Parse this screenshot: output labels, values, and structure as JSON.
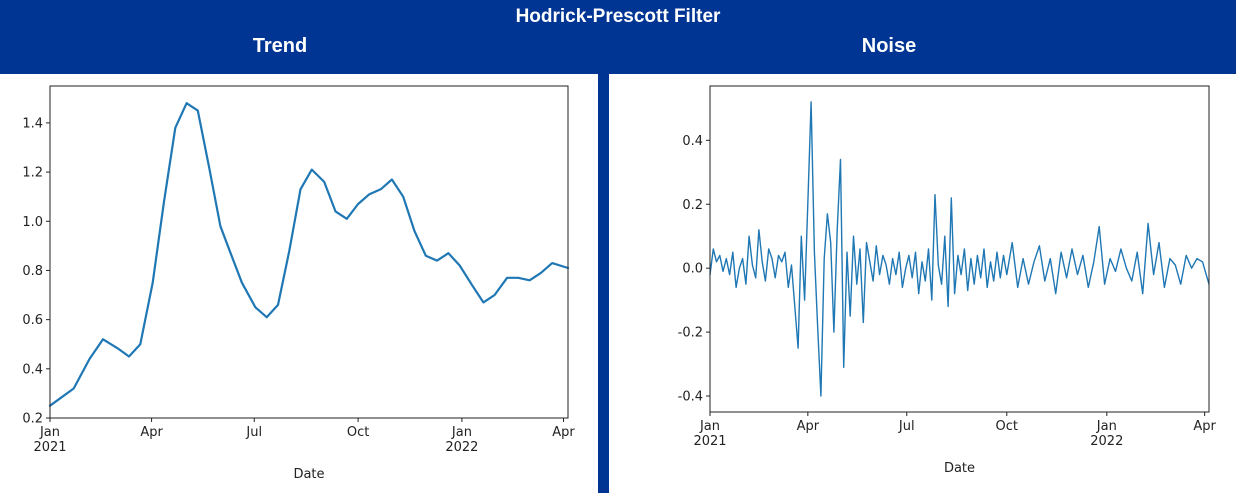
{
  "header": {
    "title": "Hodrick-Prescott Filter",
    "left_title": "Trend",
    "right_title": "Noise"
  },
  "colors": {
    "background": "#003594",
    "line": "#1f77b4",
    "panel": "#ffffff"
  },
  "chart_data": [
    {
      "type": "line",
      "title": "Trend",
      "xlabel": "Date",
      "ylabel": "",
      "xlim": [
        "2021-01-01",
        "2022-04-05"
      ],
      "ylim": [
        0.2,
        1.55
      ],
      "yticks": [
        0.2,
        0.4,
        0.6,
        0.8,
        1.0,
        1.2,
        1.4
      ],
      "xticks": [
        {
          "date": "2021-01-01",
          "label": "Jan",
          "sub": "2021"
        },
        {
          "date": "2021-04-01",
          "label": "Apr",
          "sub": ""
        },
        {
          "date": "2021-07-01",
          "label": "Jul",
          "sub": ""
        },
        {
          "date": "2021-10-01",
          "label": "Oct",
          "sub": ""
        },
        {
          "date": "2022-01-01",
          "label": "Jan",
          "sub": "2022"
        },
        {
          "date": "2022-04-01",
          "label": "Apr",
          "sub": ""
        }
      ],
      "series": [
        {
          "x": [
            "2021-01-01",
            "2021-01-10",
            "2021-01-22",
            "2021-02-05",
            "2021-02-17",
            "2021-03-03",
            "2021-03-12",
            "2021-03-22",
            "2021-04-02",
            "2021-04-12",
            "2021-04-22",
            "2021-05-02",
            "2021-05-12",
            "2021-05-22",
            "2021-06-01",
            "2021-06-10",
            "2021-06-20",
            "2021-07-02",
            "2021-07-12",
            "2021-07-22",
            "2021-08-01",
            "2021-08-11",
            "2021-08-21",
            "2021-09-01",
            "2021-09-11",
            "2021-09-21",
            "2021-10-01",
            "2021-10-11",
            "2021-10-21",
            "2021-10-31",
            "2021-11-10",
            "2021-11-20",
            "2021-11-30",
            "2021-12-10",
            "2021-12-20",
            "2021-12-30",
            "2022-01-10",
            "2022-01-20",
            "2022-01-30",
            "2022-02-10",
            "2022-02-20",
            "2022-03-02",
            "2022-03-12",
            "2022-03-22",
            "2022-04-05"
          ],
          "values": [
            0.25,
            0.28,
            0.32,
            0.44,
            0.52,
            0.48,
            0.45,
            0.5,
            0.75,
            1.08,
            1.38,
            1.48,
            1.45,
            1.22,
            0.98,
            0.87,
            0.75,
            0.65,
            0.61,
            0.66,
            0.88,
            1.13,
            1.21,
            1.16,
            1.04,
            1.01,
            1.07,
            1.11,
            1.13,
            1.17,
            1.1,
            0.96,
            0.86,
            0.84,
            0.87,
            0.82,
            0.74,
            0.67,
            0.7,
            0.77,
            0.77,
            0.76,
            0.79,
            0.83,
            0.81
          ]
        }
      ]
    },
    {
      "type": "line",
      "title": "Noise",
      "xlabel": "Date",
      "ylabel": "",
      "xlim": [
        "2021-01-01",
        "2022-04-05"
      ],
      "ylim": [
        -0.45,
        0.57
      ],
      "yticks": [
        -0.4,
        -0.2,
        0.0,
        0.2,
        0.4
      ],
      "xticks": [
        {
          "date": "2021-01-01",
          "label": "Jan",
          "sub": "2021"
        },
        {
          "date": "2021-04-01",
          "label": "Apr",
          "sub": ""
        },
        {
          "date": "2021-07-01",
          "label": "Jul",
          "sub": ""
        },
        {
          "date": "2021-10-01",
          "label": "Oct",
          "sub": ""
        },
        {
          "date": "2022-01-01",
          "label": "Jan",
          "sub": "2022"
        },
        {
          "date": "2022-04-01",
          "label": "Apr",
          "sub": ""
        }
      ],
      "series": [
        {
          "x": [
            "2021-01-01",
            "2021-01-04",
            "2021-01-07",
            "2021-01-10",
            "2021-01-13",
            "2021-01-16",
            "2021-01-19",
            "2021-01-22",
            "2021-01-25",
            "2021-01-28",
            "2021-01-31",
            "2021-02-03",
            "2021-02-06",
            "2021-02-09",
            "2021-02-12",
            "2021-02-15",
            "2021-02-18",
            "2021-02-21",
            "2021-02-24",
            "2021-02-27",
            "2021-03-02",
            "2021-03-05",
            "2021-03-08",
            "2021-03-11",
            "2021-03-14",
            "2021-03-17",
            "2021-03-20",
            "2021-03-23",
            "2021-03-26",
            "2021-03-29",
            "2021-04-01",
            "2021-04-04",
            "2021-04-07",
            "2021-04-10",
            "2021-04-13",
            "2021-04-16",
            "2021-04-19",
            "2021-04-22",
            "2021-04-25",
            "2021-04-28",
            "2021-05-01",
            "2021-05-04",
            "2021-05-07",
            "2021-05-10",
            "2021-05-13",
            "2021-05-16",
            "2021-05-19",
            "2021-05-22",
            "2021-05-25",
            "2021-05-28",
            "2021-05-31",
            "2021-06-03",
            "2021-06-06",
            "2021-06-09",
            "2021-06-12",
            "2021-06-15",
            "2021-06-18",
            "2021-06-21",
            "2021-06-24",
            "2021-06-27",
            "2021-06-30",
            "2021-07-03",
            "2021-07-06",
            "2021-07-09",
            "2021-07-12",
            "2021-07-15",
            "2021-07-18",
            "2021-07-21",
            "2021-07-24",
            "2021-07-27",
            "2021-07-30",
            "2021-08-02",
            "2021-08-05",
            "2021-08-08",
            "2021-08-11",
            "2021-08-14",
            "2021-08-17",
            "2021-08-20",
            "2021-08-23",
            "2021-08-26",
            "2021-08-29",
            "2021-09-01",
            "2021-09-04",
            "2021-09-07",
            "2021-09-10",
            "2021-09-13",
            "2021-09-16",
            "2021-09-19",
            "2021-09-22",
            "2021-09-25",
            "2021-09-28",
            "2021-10-01",
            "2021-10-06",
            "2021-10-11",
            "2021-10-16",
            "2021-10-21",
            "2021-10-26",
            "2021-10-31",
            "2021-11-05",
            "2021-11-10",
            "2021-11-15",
            "2021-11-20",
            "2021-11-25",
            "2021-11-30",
            "2021-12-05",
            "2021-12-10",
            "2021-12-15",
            "2021-12-20",
            "2021-12-25",
            "2021-12-30",
            "2022-01-04",
            "2022-01-09",
            "2022-01-14",
            "2022-01-19",
            "2022-01-24",
            "2022-01-29",
            "2022-02-03",
            "2022-02-08",
            "2022-02-13",
            "2022-02-18",
            "2022-02-23",
            "2022-02-28",
            "2022-03-05",
            "2022-03-10",
            "2022-03-15",
            "2022-03-20",
            "2022-03-25",
            "2022-03-30",
            "2022-04-05"
          ],
          "values": [
            -0.02,
            0.06,
            0.02,
            0.04,
            -0.01,
            0.03,
            -0.02,
            0.05,
            -0.06,
            0.0,
            0.03,
            -0.05,
            0.1,
            0.01,
            -0.03,
            0.12,
            0.02,
            -0.04,
            0.06,
            0.03,
            -0.03,
            0.04,
            0.02,
            0.05,
            -0.06,
            0.01,
            -0.12,
            -0.25,
            0.1,
            -0.1,
            0.2,
            0.52,
            0.05,
            -0.18,
            -0.4,
            0.03,
            0.17,
            0.08,
            -0.2,
            0.12,
            0.34,
            -0.31,
            0.05,
            -0.15,
            0.1,
            -0.05,
            0.06,
            -0.17,
            0.08,
            0.02,
            -0.04,
            0.07,
            -0.02,
            0.04,
            0.01,
            -0.05,
            0.03,
            -0.02,
            0.05,
            -0.06,
            0.0,
            0.04,
            -0.03,
            0.05,
            -0.08,
            0.02,
            -0.04,
            0.06,
            -0.1,
            0.23,
            0.01,
            -0.05,
            0.1,
            -0.12,
            0.22,
            -0.08,
            0.04,
            -0.02,
            0.06,
            -0.07,
            0.03,
            -0.05,
            0.04,
            -0.03,
            0.06,
            -0.06,
            0.02,
            -0.04,
            0.05,
            -0.03,
            0.04,
            -0.02,
            0.08,
            -0.06,
            0.03,
            -0.05,
            0.02,
            0.07,
            -0.04,
            0.03,
            -0.08,
            0.05,
            -0.03,
            0.06,
            -0.02,
            0.04,
            -0.06,
            0.02,
            0.13,
            -0.05,
            0.03,
            -0.01,
            0.06,
            0.0,
            -0.04,
            0.05,
            -0.08,
            0.14,
            -0.02,
            0.08,
            -0.06,
            0.03,
            0.01,
            -0.05,
            0.04,
            0.0,
            0.03,
            0.02,
            -0.05
          ]
        }
      ]
    }
  ]
}
